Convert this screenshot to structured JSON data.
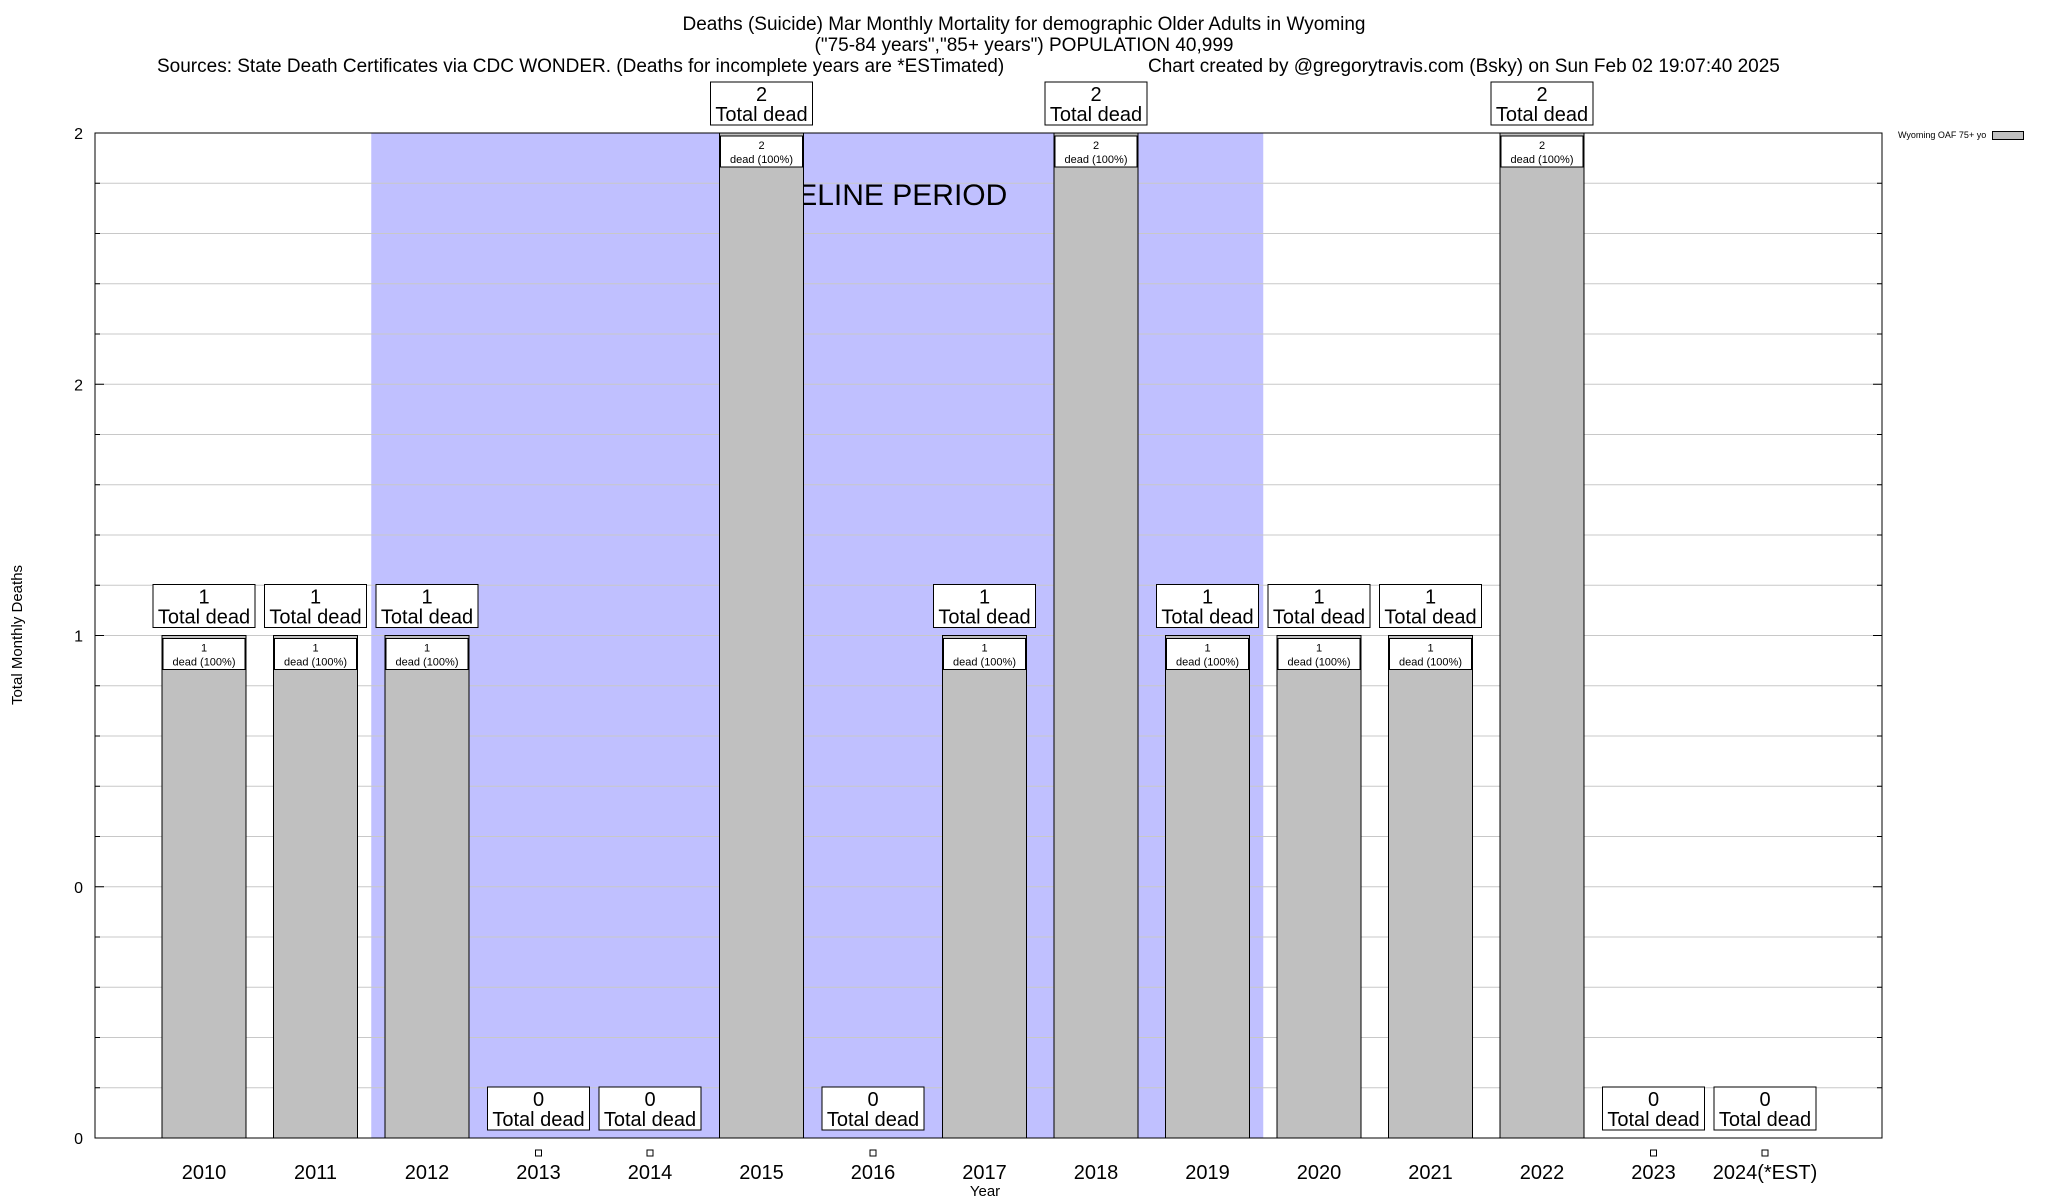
{
  "title": {
    "line1": "Deaths (Suicide) Mar Monthly Mortality for demographic Older Adults in Wyoming",
    "line2": "(\"75-84 years\",\"85+ years\") POPULATION 40,999",
    "sources": "Sources: State Death Certificates via CDC WONDER. (Deaths for incomplete years are *ESTimated)",
    "credit": "Chart created by @gregorytravis.com (Bsky) on Sun Feb 02 19:07:40 2025"
  },
  "legend": {
    "label": "Wyoming OAF 75+ yo"
  },
  "colors": {
    "bar": "#c0c0c0",
    "baseline": "#c0c0ff",
    "grid": "#c8c8c8"
  },
  "chart_data": {
    "type": "bar",
    "xlabel": "Year",
    "ylabel": "Total Monthly Deaths",
    "ylim": [
      0,
      2
    ],
    "yticks": [
      {
        "value": 0,
        "label": "0"
      },
      {
        "value": 0.5,
        "label": "0"
      },
      {
        "value": 1,
        "label": "1"
      },
      {
        "value": 1.5,
        "label": "2"
      },
      {
        "value": 2,
        "label": "2"
      }
    ],
    "categories": [
      "2010",
      "2011",
      "2012",
      "2013",
      "2014",
      "2015",
      "2016",
      "2017",
      "2018",
      "2019",
      "2020",
      "2021",
      "2022",
      "2023",
      "2024(*EST)"
    ],
    "series": [
      {
        "name": "Wyoming OAF 75+ yo",
        "values": [
          1,
          1,
          1,
          0,
          0,
          2,
          0,
          1,
          2,
          1,
          1,
          1,
          2,
          0,
          0
        ]
      }
    ],
    "total_labels": [
      "1",
      "1",
      "1",
      "0",
      "0",
      "2",
      "0",
      "1",
      "2",
      "1",
      "1",
      "1",
      "2",
      "0",
      "0"
    ],
    "total_label_suffix": "Total dead",
    "inner_labels": [
      "1",
      "1",
      "1",
      "",
      "",
      "2",
      "",
      "1",
      "2",
      "1",
      "1",
      "1",
      "2",
      "",
      ""
    ],
    "inner_label_suffix": "dead (100%)",
    "baseline": {
      "start_category": "2012",
      "end_category": "2019",
      "label": "BASELINE PERIOD"
    },
    "grid": true,
    "legend_position": "top-right"
  }
}
